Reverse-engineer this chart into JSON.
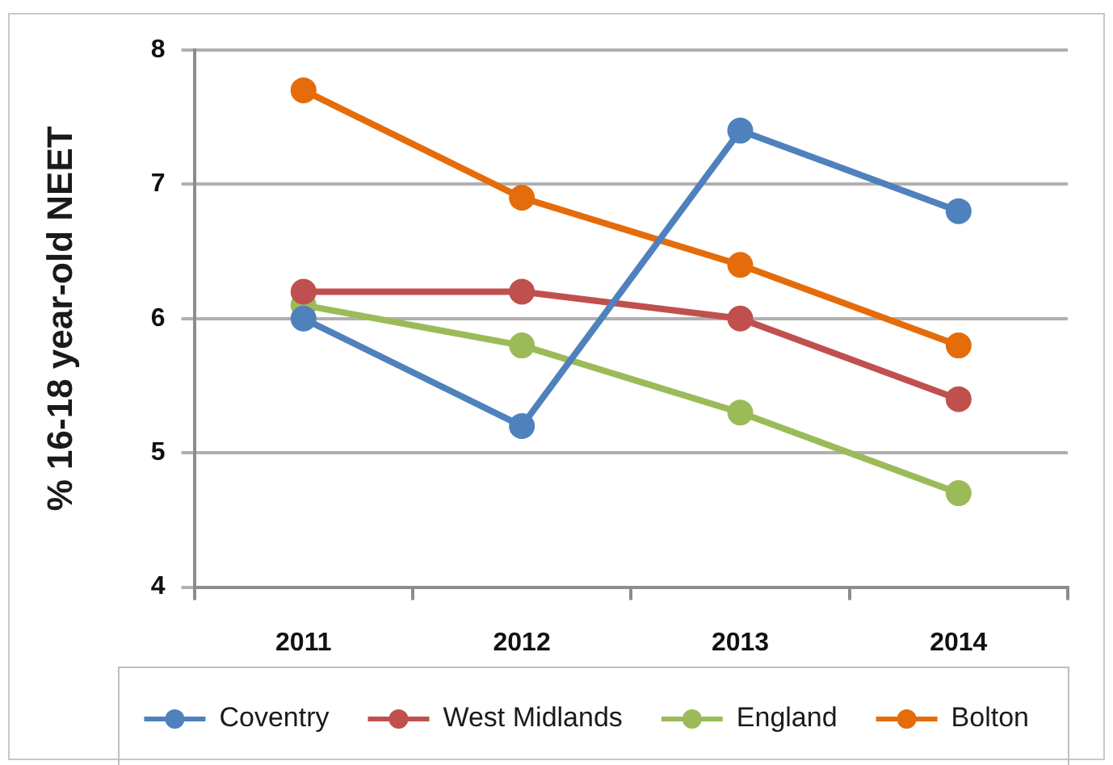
{
  "chart_data": {
    "type": "line",
    "ylabel": "% 16-18 year-old NEET",
    "categories": [
      "2011",
      "2012",
      "2013",
      "2014"
    ],
    "series": [
      {
        "name": "Coventry",
        "color": "#4f81bd",
        "values": [
          6.0,
          5.2,
          7.4,
          6.8
        ]
      },
      {
        "name": "West Midlands",
        "color": "#c0504d",
        "values": [
          6.2,
          6.2,
          6.0,
          5.4
        ]
      },
      {
        "name": "England",
        "color": "#9bbb59",
        "values": [
          6.1,
          5.8,
          5.3,
          4.7
        ]
      },
      {
        "name": "Bolton",
        "color": "#e46c0a",
        "values": [
          7.7,
          6.9,
          6.4,
          5.8
        ]
      }
    ],
    "ylim": [
      4,
      8
    ],
    "yticks": [
      4,
      5,
      6,
      7,
      8
    ],
    "grid": "y",
    "legend": "bottom",
    "marker": "circle",
    "line_style": "solid"
  }
}
